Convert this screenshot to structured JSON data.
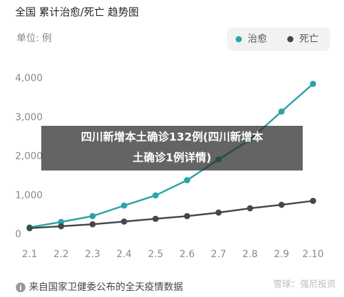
{
  "chart_data": {
    "type": "line",
    "title": "全国 累计治愈/死亡 趋势图",
    "unit_label": "单位: 例",
    "categories": [
      "2.1",
      "2.2",
      "2.3",
      "2.4",
      "2.5",
      "2.6",
      "2.7",
      "2.8",
      "2.9",
      "2.10"
    ],
    "series": [
      {
        "name": "治愈",
        "color": "#2aa4a6",
        "values": [
          180,
          320,
          470,
          740,
          1000,
          1390,
          1920,
          2430,
          3150,
          3860
        ]
      },
      {
        "name": "死亡",
        "color": "#45474d",
        "values": [
          160,
          210,
          260,
          330,
          400,
          470,
          560,
          670,
          760,
          860
        ]
      }
    ],
    "ylim": [
      0,
      4000
    ],
    "yticks": [
      0,
      {
        "value": 1000,
        "label": "1,000"
      },
      {
        "value": 2000,
        "label": "2,000"
      },
      {
        "value": 3000,
        "label": "3,000"
      },
      {
        "value": 4000,
        "label": "4,000"
      }
    ],
    "grid": false,
    "legend": "top-right",
    "overlay_lines": [
      "四川新增本土确诊132例(四川新增本",
      "土确诊1例详情)"
    ],
    "source": "来自国家卫健委公布的全天疫情数据",
    "watermark": "雪球：强尼投资"
  }
}
